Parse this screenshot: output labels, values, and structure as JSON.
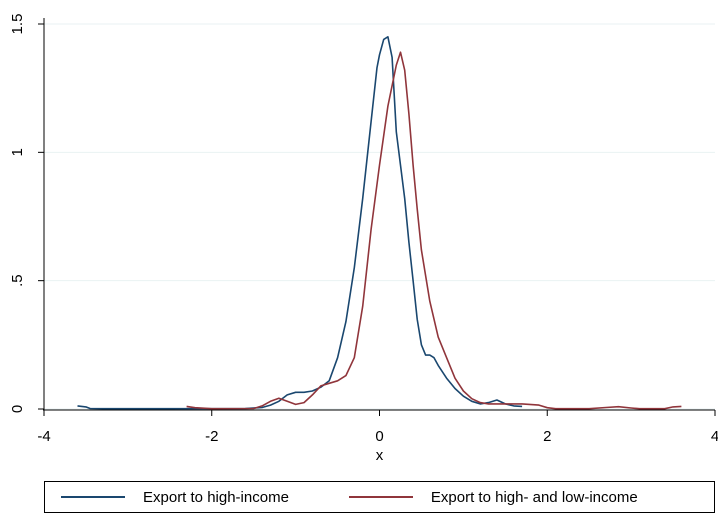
{
  "chart_data": {
    "type": "line",
    "title": "",
    "xlabel": "x",
    "ylabel": "",
    "xlim": [
      -4,
      4
    ],
    "ylim": [
      0,
      1.5
    ],
    "xticks": [
      {
        "value": -4,
        "label": "-4"
      },
      {
        "value": -2,
        "label": "-2"
      },
      {
        "value": 0,
        "label": "0"
      },
      {
        "value": 2,
        "label": "2"
      },
      {
        "value": 4,
        "label": "4"
      }
    ],
    "yticks": [
      {
        "value": 0,
        "label": "0"
      },
      {
        "value": 0.5,
        "label": ".5"
      },
      {
        "value": 1,
        "label": "1"
      },
      {
        "value": 1.5,
        "label": "1.5"
      }
    ],
    "grid": "horizontal",
    "legend_position": "bottom",
    "series": [
      {
        "name": "Export to high-income",
        "color": "#1a476f",
        "points": [
          [
            -3.6,
            0.012
          ],
          [
            -3.5,
            0.008
          ],
          [
            -3.45,
            0.002
          ],
          [
            -3.3,
            0.001
          ],
          [
            -2.5,
            0.001
          ],
          [
            -1.6,
            0.002
          ],
          [
            -1.4,
            0.006
          ],
          [
            -1.3,
            0.015
          ],
          [
            -1.2,
            0.03
          ],
          [
            -1.1,
            0.055
          ],
          [
            -1.0,
            0.065
          ],
          [
            -0.9,
            0.065
          ],
          [
            -0.8,
            0.07
          ],
          [
            -0.7,
            0.085
          ],
          [
            -0.6,
            0.11
          ],
          [
            -0.5,
            0.2
          ],
          [
            -0.4,
            0.34
          ],
          [
            -0.3,
            0.55
          ],
          [
            -0.2,
            0.82
          ],
          [
            -0.1,
            1.12
          ],
          [
            -0.03,
            1.33
          ],
          [
            0.0,
            1.38
          ],
          [
            0.05,
            1.44
          ],
          [
            0.1,
            1.45
          ],
          [
            0.15,
            1.37
          ],
          [
            0.2,
            1.08
          ],
          [
            0.25,
            0.95
          ],
          [
            0.3,
            0.82
          ],
          [
            0.35,
            0.65
          ],
          [
            0.4,
            0.5
          ],
          [
            0.45,
            0.35
          ],
          [
            0.5,
            0.25
          ],
          [
            0.55,
            0.21
          ],
          [
            0.6,
            0.21
          ],
          [
            0.65,
            0.2
          ],
          [
            0.7,
            0.17
          ],
          [
            0.8,
            0.12
          ],
          [
            0.9,
            0.08
          ],
          [
            1.0,
            0.05
          ],
          [
            1.1,
            0.03
          ],
          [
            1.2,
            0.02
          ],
          [
            1.3,
            0.025
          ],
          [
            1.4,
            0.035
          ],
          [
            1.5,
            0.02
          ],
          [
            1.6,
            0.012
          ],
          [
            1.7,
            0.01
          ]
        ]
      },
      {
        "name": "Export to high- and low-income",
        "color": "#90353b",
        "points": [
          [
            -2.3,
            0.01
          ],
          [
            -2.2,
            0.005
          ],
          [
            -2.0,
            0.001
          ],
          [
            -1.5,
            0.002
          ],
          [
            -1.4,
            0.012
          ],
          [
            -1.3,
            0.03
          ],
          [
            -1.2,
            0.042
          ],
          [
            -1.1,
            0.03
          ],
          [
            -1.0,
            0.018
          ],
          [
            -0.9,
            0.025
          ],
          [
            -0.8,
            0.055
          ],
          [
            -0.7,
            0.09
          ],
          [
            -0.6,
            0.1
          ],
          [
            -0.5,
            0.11
          ],
          [
            -0.4,
            0.13
          ],
          [
            -0.3,
            0.2
          ],
          [
            -0.2,
            0.4
          ],
          [
            -0.1,
            0.7
          ],
          [
            0.0,
            0.95
          ],
          [
            0.1,
            1.18
          ],
          [
            0.2,
            1.34
          ],
          [
            0.25,
            1.39
          ],
          [
            0.3,
            1.32
          ],
          [
            0.35,
            1.15
          ],
          [
            0.4,
            0.95
          ],
          [
            0.45,
            0.78
          ],
          [
            0.5,
            0.62
          ],
          [
            0.6,
            0.42
          ],
          [
            0.7,
            0.28
          ],
          [
            0.8,
            0.2
          ],
          [
            0.9,
            0.12
          ],
          [
            1.0,
            0.07
          ],
          [
            1.1,
            0.04
          ],
          [
            1.2,
            0.025
          ],
          [
            1.3,
            0.02
          ],
          [
            1.5,
            0.02
          ],
          [
            1.7,
            0.02
          ],
          [
            1.9,
            0.015
          ],
          [
            2.0,
            0.005
          ],
          [
            2.1,
            0.001
          ],
          [
            2.5,
            0.001
          ],
          [
            2.7,
            0.006
          ],
          [
            2.85,
            0.009
          ],
          [
            3.0,
            0.004
          ],
          [
            3.1,
            0.001
          ],
          [
            3.4,
            0.001
          ],
          [
            3.5,
            0.008
          ],
          [
            3.6,
            0.01
          ]
        ]
      }
    ]
  }
}
